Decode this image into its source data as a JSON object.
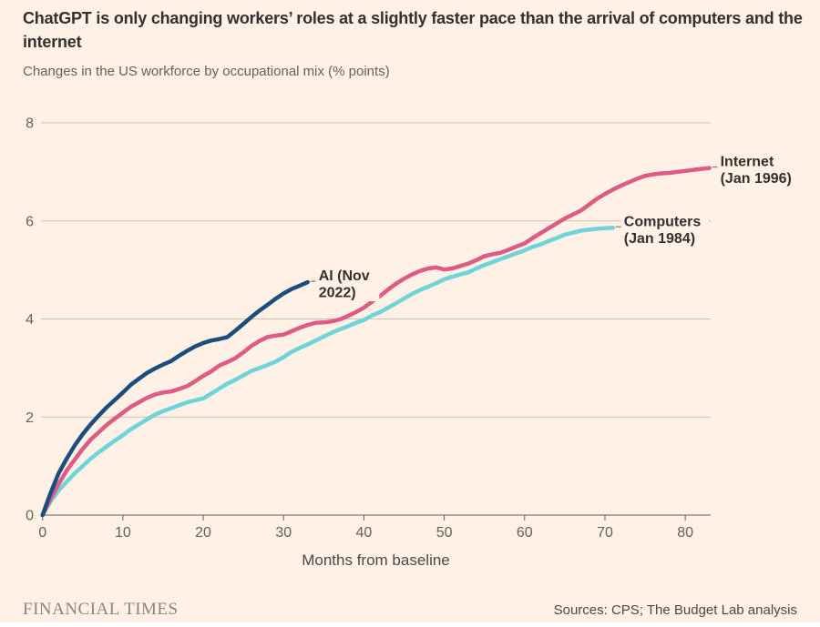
{
  "header": {
    "title": "ChatGPT is only changing workers’ roles at a slightly faster pace than the arrival of computers and the internet",
    "subtitle": "Changes in the US workforce by occupational mix (% points)"
  },
  "chart_data": {
    "type": "line",
    "title": "ChatGPT is only changing workers’ roles at a slightly faster pace than the arrival of computers and the internet",
    "subtitle": "Changes in the US workforce by occupational mix (% points)",
    "xlabel": "Months from baseline",
    "ylabel": "",
    "xlim": [
      0,
      83
    ],
    "ylim": [
      0,
      8
    ],
    "x_ticks": [
      0,
      10,
      20,
      30,
      40,
      50,
      60,
      70,
      80
    ],
    "y_ticks": [
      0,
      2,
      4,
      6,
      8
    ],
    "grid": "horizontal",
    "legend_position": "end-of-line-labels",
    "series": [
      {
        "name": "Computers (Jan 1984)",
        "label_lines": [
          "Computers",
          "(Jan 1984)"
        ],
        "color": "#6FD4DA",
        "points": [
          [
            0,
            0
          ],
          [
            1,
            0.28
          ],
          [
            2,
            0.5
          ],
          [
            3,
            0.68
          ],
          [
            4,
            0.85
          ],
          [
            5,
            1.0
          ],
          [
            6,
            1.15
          ],
          [
            7,
            1.28
          ],
          [
            8,
            1.4
          ],
          [
            9,
            1.52
          ],
          [
            10,
            1.63
          ],
          [
            11,
            1.75
          ],
          [
            12,
            1.85
          ],
          [
            13,
            1.95
          ],
          [
            14,
            2.05
          ],
          [
            15,
            2.12
          ],
          [
            16,
            2.18
          ],
          [
            17,
            2.24
          ],
          [
            18,
            2.3
          ],
          [
            19,
            2.34
          ],
          [
            20,
            2.38
          ],
          [
            21,
            2.48
          ],
          [
            22,
            2.58
          ],
          [
            23,
            2.68
          ],
          [
            24,
            2.76
          ],
          [
            25,
            2.85
          ],
          [
            26,
            2.94
          ],
          [
            27,
            3.0
          ],
          [
            28,
            3.06
          ],
          [
            29,
            3.13
          ],
          [
            30,
            3.22
          ],
          [
            31,
            3.33
          ],
          [
            32,
            3.41
          ],
          [
            33,
            3.48
          ],
          [
            34,
            3.56
          ],
          [
            35,
            3.64
          ],
          [
            36,
            3.72
          ],
          [
            37,
            3.79
          ],
          [
            38,
            3.85
          ],
          [
            39,
            3.92
          ],
          [
            40,
            3.98
          ],
          [
            41,
            4.07
          ],
          [
            42,
            4.14
          ],
          [
            43,
            4.23
          ],
          [
            44,
            4.32
          ],
          [
            45,
            4.42
          ],
          [
            46,
            4.51
          ],
          [
            47,
            4.59
          ],
          [
            48,
            4.66
          ],
          [
            49,
            4.73
          ],
          [
            50,
            4.81
          ],
          [
            51,
            4.86
          ],
          [
            52,
            4.91
          ],
          [
            53,
            4.95
          ],
          [
            54,
            5.03
          ],
          [
            55,
            5.1
          ],
          [
            56,
            5.16
          ],
          [
            57,
            5.22
          ],
          [
            58,
            5.28
          ],
          [
            59,
            5.34
          ],
          [
            60,
            5.4
          ],
          [
            61,
            5.47
          ],
          [
            62,
            5.52
          ],
          [
            63,
            5.59
          ],
          [
            64,
            5.65
          ],
          [
            65,
            5.72
          ],
          [
            66,
            5.76
          ],
          [
            67,
            5.8
          ],
          [
            68,
            5.82
          ],
          [
            69,
            5.84
          ],
          [
            70,
            5.85
          ],
          [
            71,
            5.86
          ]
        ]
      },
      {
        "name": "Internet (Jan 1996)",
        "label_lines": [
          "Internet",
          "(Jan 1996)"
        ],
        "color": "#DE5B84",
        "points": [
          [
            0,
            0
          ],
          [
            1,
            0.33
          ],
          [
            2,
            0.63
          ],
          [
            3,
            0.91
          ],
          [
            4,
            1.13
          ],
          [
            5,
            1.35
          ],
          [
            6,
            1.54
          ],
          [
            7,
            1.69
          ],
          [
            8,
            1.84
          ],
          [
            9,
            1.97
          ],
          [
            10,
            2.09
          ],
          [
            11,
            2.21
          ],
          [
            12,
            2.3
          ],
          [
            13,
            2.39
          ],
          [
            14,
            2.46
          ],
          [
            15,
            2.5
          ],
          [
            16,
            2.52
          ],
          [
            17,
            2.57
          ],
          [
            18,
            2.63
          ],
          [
            19,
            2.73
          ],
          [
            20,
            2.84
          ],
          [
            21,
            2.93
          ],
          [
            22,
            3.05
          ],
          [
            23,
            3.12
          ],
          [
            24,
            3.2
          ],
          [
            25,
            3.32
          ],
          [
            26,
            3.45
          ],
          [
            27,
            3.55
          ],
          [
            28,
            3.63
          ],
          [
            29,
            3.66
          ],
          [
            30,
            3.68
          ],
          [
            31,
            3.75
          ],
          [
            32,
            3.82
          ],
          [
            33,
            3.88
          ],
          [
            34,
            3.92
          ],
          [
            35,
            3.93
          ],
          [
            36,
            3.95
          ],
          [
            37,
            3.99
          ],
          [
            38,
            4.06
          ],
          [
            39,
            4.14
          ],
          [
            40,
            4.23
          ],
          [
            41,
            4.35
          ],
          [
            42,
            4.47
          ],
          [
            43,
            4.6
          ],
          [
            44,
            4.72
          ],
          [
            45,
            4.82
          ],
          [
            46,
            4.91
          ],
          [
            47,
            4.98
          ],
          [
            48,
            5.03
          ],
          [
            49,
            5.05
          ],
          [
            50,
            5.01
          ],
          [
            51,
            5.03
          ],
          [
            52,
            5.08
          ],
          [
            53,
            5.13
          ],
          [
            54,
            5.2
          ],
          [
            55,
            5.28
          ],
          [
            56,
            5.32
          ],
          [
            57,
            5.35
          ],
          [
            58,
            5.41
          ],
          [
            59,
            5.48
          ],
          [
            60,
            5.54
          ],
          [
            61,
            5.65
          ],
          [
            62,
            5.75
          ],
          [
            63,
            5.85
          ],
          [
            64,
            5.95
          ],
          [
            65,
            6.05
          ],
          [
            66,
            6.13
          ],
          [
            67,
            6.21
          ],
          [
            68,
            6.33
          ],
          [
            69,
            6.45
          ],
          [
            70,
            6.55
          ],
          [
            71,
            6.64
          ],
          [
            72,
            6.72
          ],
          [
            73,
            6.79
          ],
          [
            74,
            6.86
          ],
          [
            75,
            6.92
          ],
          [
            76,
            6.95
          ],
          [
            77,
            6.97
          ],
          [
            78,
            6.98
          ],
          [
            79,
            7.0
          ],
          [
            80,
            7.02
          ],
          [
            81,
            7.04
          ],
          [
            82,
            7.06
          ],
          [
            83,
            7.08
          ]
        ]
      },
      {
        "name": "AI (Nov 2022)",
        "label_lines": [
          "AI (Nov",
          "2022)"
        ],
        "color": "#1B4E7D",
        "points": [
          [
            0,
            0
          ],
          [
            1,
            0.45
          ],
          [
            2,
            0.85
          ],
          [
            3,
            1.15
          ],
          [
            4,
            1.42
          ],
          [
            5,
            1.65
          ],
          [
            6,
            1.85
          ],
          [
            7,
            2.03
          ],
          [
            8,
            2.2
          ],
          [
            9,
            2.35
          ],
          [
            10,
            2.5
          ],
          [
            11,
            2.66
          ],
          [
            12,
            2.78
          ],
          [
            13,
            2.9
          ],
          [
            14,
            2.99
          ],
          [
            15,
            3.07
          ],
          [
            16,
            3.14
          ],
          [
            17,
            3.25
          ],
          [
            18,
            3.35
          ],
          [
            19,
            3.44
          ],
          [
            20,
            3.51
          ],
          [
            21,
            3.56
          ],
          [
            22,
            3.59
          ],
          [
            23,
            3.63
          ],
          [
            24,
            3.76
          ],
          [
            25,
            3.9
          ],
          [
            26,
            4.04
          ],
          [
            27,
            4.17
          ],
          [
            28,
            4.29
          ],
          [
            29,
            4.41
          ],
          [
            30,
            4.52
          ],
          [
            31,
            4.61
          ],
          [
            32,
            4.68
          ],
          [
            33,
            4.75
          ]
        ]
      }
    ]
  },
  "footer": {
    "brand": "FINANCIAL TIMES",
    "source": "Sources: CPS; The Budget Lab analysis"
  },
  "colors": {
    "paper": "#FFF1E5",
    "title_text": "#33302E",
    "muted_text": "#66605C",
    "gridline": "#CCC1B7",
    "axis_line": "#66605C",
    "annotation_text": "#33302E",
    "brand_text": "#8E8579",
    "source_text": "#4D4845"
  }
}
